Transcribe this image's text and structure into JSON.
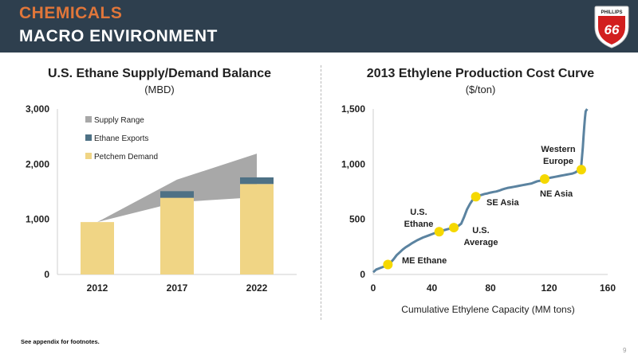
{
  "header": {
    "title_line1": "CHEMICALS",
    "title_line2": "MACRO ENVIRONMENT"
  },
  "logo": {
    "text_top": "PHILLIPS",
    "text_main": "66"
  },
  "colors": {
    "header_bg": "#2e3f4e",
    "accent_orange": "#e0763a",
    "supply_range": "#a8a8a8",
    "ethane_exports": "#4e7185",
    "petchem_demand": "#f0d585",
    "curve_line": "#5b83a0",
    "marker": "#f5d800",
    "logo_red": "#d21f1f"
  },
  "footnote": "See appendix for footnotes.",
  "page_number": "9",
  "chart_data": [
    {
      "type": "bar",
      "title": "U.S. Ethane Supply/Demand Balance",
      "subtitle": "(MBD)",
      "categories": [
        "2012",
        "2017",
        "2022"
      ],
      "series": [
        {
          "name": "Petchem Demand",
          "values": [
            950,
            1390,
            1640
          ]
        },
        {
          "name": "Ethane Exports",
          "values": [
            0,
            120,
            120
          ]
        }
      ],
      "supply_range": {
        "name": "Supply Range",
        "x": [
          "2012",
          "2017",
          "2022"
        ],
        "low": [
          950,
          1310,
          1400
        ],
        "high": [
          950,
          1720,
          2190
        ]
      },
      "ylim": [
        0,
        3000
      ],
      "yticks": [
        "0",
        "1,000",
        "2,000",
        "3,000"
      ],
      "legend": [
        "Supply Range",
        "Ethane Exports",
        "Petchem Demand"
      ],
      "legend_position": "top-left"
    },
    {
      "type": "line",
      "title": "2013 Ethylene Production Cost Curve",
      "subtitle": "($/ton)",
      "xlabel": "Cumulative Ethylene Capacity (MM tons)",
      "ylabel": "",
      "xlim": [
        0,
        160
      ],
      "ylim": [
        0,
        1500
      ],
      "xticks": [
        "0",
        "40",
        "80",
        "120",
        "160"
      ],
      "yticks": [
        "0",
        "500",
        "1,000",
        "1,500"
      ],
      "x": [
        0,
        2,
        4,
        6,
        8,
        10,
        12,
        14,
        16,
        18,
        20,
        22,
        24,
        26,
        28,
        30,
        32,
        34,
        36,
        38,
        40,
        42,
        44,
        46,
        48,
        50,
        52,
        54,
        56,
        58,
        60,
        62,
        64,
        66,
        68,
        70,
        72,
        74,
        76,
        78,
        80,
        82,
        84,
        86,
        88,
        90,
        92,
        94,
        96,
        98,
        100,
        102,
        104,
        106,
        108,
        110,
        112,
        114,
        116,
        118,
        120,
        122,
        124,
        126,
        128,
        130,
        132,
        134,
        136,
        138,
        140,
        142,
        143,
        143.5,
        144,
        144.5,
        145,
        146
      ],
      "y": [
        20,
        45,
        55,
        65,
        75,
        90,
        110,
        140,
        175,
        200,
        225,
        245,
        262,
        280,
        295,
        310,
        322,
        335,
        345,
        355,
        365,
        375,
        385,
        393,
        400,
        408,
        415,
        422,
        430,
        440,
        460,
        520,
        590,
        640,
        680,
        705,
        715,
        722,
        730,
        735,
        742,
        748,
        752,
        760,
        770,
        778,
        785,
        790,
        795,
        800,
        805,
        810,
        815,
        820,
        825,
        835,
        845,
        850,
        860,
        870,
        875,
        880,
        885,
        890,
        895,
        900,
        905,
        910,
        915,
        925,
        945,
        990,
        1150,
        1250,
        1340,
        1420,
        1480,
        1550
      ],
      "markers": [
        {
          "x": 10,
          "y": 90,
          "label": "ME Ethane"
        },
        {
          "x": 45,
          "y": 388,
          "label": "U.S. Ethane"
        },
        {
          "x": 55,
          "y": 425,
          "label": "U.S. Average"
        },
        {
          "x": 70,
          "y": 705,
          "label": "SE Asia"
        },
        {
          "x": 117,
          "y": 865,
          "label": "NE Asia"
        },
        {
          "x": 142,
          "y": 950,
          "label": "Western Europe"
        }
      ],
      "annotations": {
        "me_ethane": "ME Ethane",
        "us_ethane_1": "U.S.",
        "us_ethane_2": "Ethane",
        "us_avg_1": "U.S.",
        "us_avg_2": "Average",
        "se_asia": "SE Asia",
        "ne_asia": "NE Asia",
        "w_europe_1": "Western",
        "w_europe_2": "Europe"
      }
    }
  ]
}
